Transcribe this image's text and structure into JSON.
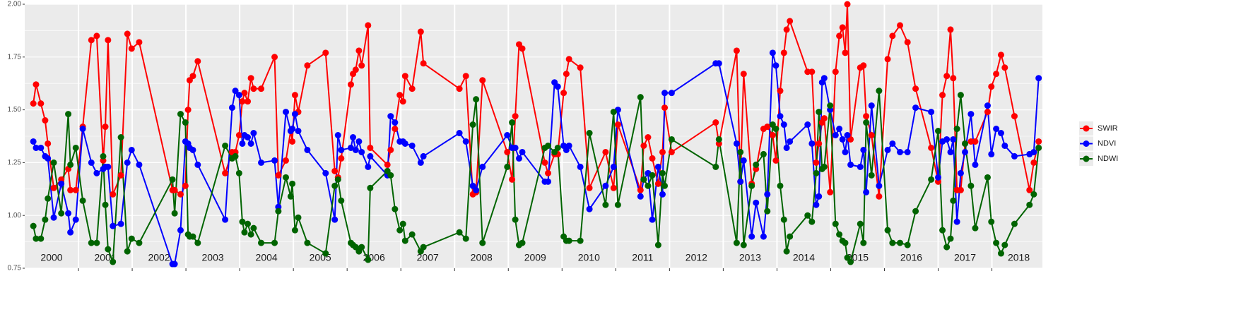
{
  "chart_data": {
    "type": "line",
    "x": [
      2000.16,
      2000.21,
      2000.3,
      2000.38,
      2000.43,
      2000.54,
      2000.68,
      2000.81,
      2000.85,
      2000.95,
      2001.08,
      2001.24,
      2001.34,
      2001.46,
      2001.5,
      2001.55,
      2001.64,
      2001.79,
      2001.91,
      2001.99,
      2002.13,
      2002.75,
      2002.79,
      2002.9,
      2002.99,
      2003.04,
      2003.07,
      2003.13,
      2003.22,
      2003.73,
      2003.86,
      2003.92,
      2003.99,
      2004.05,
      2004.09,
      2004.15,
      2004.21,
      2004.26,
      2004.4,
      2004.65,
      2004.72,
      2004.86,
      2004.95,
      2004.98,
      2005.03,
      2005.09,
      2005.26,
      2005.6,
      2005.77,
      2005.83,
      2005.89,
      2006.07,
      2006.11,
      2006.16,
      2006.22,
      2006.27,
      2006.39,
      2006.43,
      2006.75,
      2006.81,
      2006.89,
      2006.98,
      2007.04,
      2007.08,
      2007.21,
      2007.37,
      2007.42,
      2008.09,
      2008.21,
      2008.34,
      2008.4,
      2008.52,
      2008.98,
      2009.07,
      2009.13,
      2009.2,
      2009.26,
      2009.68,
      2009.74,
      2009.86,
      2009.92,
      2010.03,
      2010.08,
      2010.13,
      2010.34,
      2010.51,
      2010.81,
      2010.96,
      2011.04,
      2011.46,
      2011.52,
      2011.6,
      2011.68,
      2011.79,
      2011.87,
      2011.91,
      2012.04,
      2012.86,
      2012.92,
      2013.25,
      2013.32,
      2013.38,
      2013.53,
      2013.61,
      2013.75,
      2013.82,
      2013.92,
      2013.98,
      2014.06,
      2014.13,
      2014.18,
      2014.24,
      2014.57,
      2014.65,
      2014.73,
      2014.78,
      2014.84,
      2014.88,
      2014.99,
      2015.09,
      2015.16,
      2015.22,
      2015.27,
      2015.31,
      2015.37,
      2015.55,
      2015.61,
      2015.66,
      2015.76,
      2015.9,
      2016.06,
      2016.15,
      2016.29,
      2016.43,
      2016.58,
      2016.87,
      2017.0,
      2017.08,
      2017.16,
      2017.23,
      2017.28,
      2017.35,
      2017.42,
      2017.5,
      2017.61,
      2017.69,
      2017.92,
      2017.99,
      2018.08,
      2018.17,
      2018.24,
      2018.42,
      2018.7,
      2018.78,
      2018.87
    ],
    "series": [
      {
        "name": "SWIR",
        "color": "#ff0000",
        "values": [
          1.53,
          1.62,
          1.53,
          1.45,
          1.34,
          1.13,
          1.17,
          1.22,
          1.12,
          1.12,
          1.42,
          1.83,
          1.85,
          1.26,
          1.42,
          1.83,
          1.1,
          1.19,
          1.86,
          1.79,
          1.82,
          1.12,
          1.12,
          1.1,
          1.14,
          1.5,
          1.64,
          1.66,
          1.73,
          1.2,
          1.3,
          1.3,
          1.38,
          1.54,
          1.58,
          1.54,
          1.65,
          1.6,
          1.6,
          1.75,
          1.19,
          1.26,
          1.4,
          1.35,
          1.57,
          1.49,
          1.71,
          1.77,
          1.21,
          1.18,
          1.27,
          1.62,
          1.67,
          1.69,
          1.78,
          1.71,
          1.9,
          1.32,
          1.24,
          1.31,
          1.41,
          1.57,
          1.54,
          1.66,
          1.6,
          1.87,
          1.72,
          1.6,
          1.66,
          1.1,
          1.11,
          1.64,
          1.3,
          1.17,
          1.47,
          1.81,
          1.79,
          1.25,
          1.2,
          1.29,
          1.29,
          1.58,
          1.67,
          1.74,
          1.7,
          1.13,
          1.3,
          1.13,
          1.43,
          1.12,
          1.33,
          1.37,
          1.27,
          1.15,
          1.3,
          1.51,
          1.3,
          1.44,
          1.34,
          1.78,
          1.16,
          1.67,
          1.15,
          1.22,
          1.41,
          1.42,
          1.38,
          1.26,
          1.59,
          1.77,
          1.88,
          1.92,
          1.68,
          1.68,
          1.25,
          1.34,
          1.44,
          1.46,
          1.11,
          1.68,
          1.85,
          1.89,
          1.77,
          2.0,
          1.36,
          1.7,
          1.71,
          1.47,
          1.38,
          1.09,
          1.74,
          1.85,
          1.9,
          1.82,
          1.6,
          1.32,
          1.16,
          1.57,
          1.66,
          1.88,
          1.65,
          1.12,
          1.12,
          1.34,
          1.35,
          1.35,
          1.49,
          1.61,
          1.67,
          1.76,
          1.7,
          1.47,
          1.12,
          1.25,
          1.35
        ]
      },
      {
        "name": "NDVI",
        "color": "#0000ff",
        "values": [
          1.35,
          1.32,
          1.32,
          1.28,
          1.27,
          0.99,
          1.15,
          1.01,
          0.92,
          0.98,
          1.41,
          1.25,
          1.2,
          1.22,
          1.23,
          1.23,
          0.95,
          0.96,
          1.25,
          1.31,
          1.24,
          0.77,
          0.77,
          0.93,
          1.35,
          1.34,
          1.32,
          1.31,
          1.24,
          0.98,
          1.51,
          1.59,
          1.57,
          1.34,
          1.38,
          1.37,
          1.34,
          1.39,
          1.25,
          1.26,
          1.04,
          1.49,
          1.4,
          1.41,
          1.48,
          1.4,
          1.31,
          1.2,
          0.98,
          1.38,
          1.31,
          1.32,
          1.37,
          1.31,
          1.35,
          1.3,
          1.23,
          1.28,
          1.19,
          1.47,
          1.44,
          1.35,
          1.35,
          1.34,
          1.33,
          1.25,
          1.28,
          1.39,
          1.35,
          1.14,
          1.12,
          1.23,
          1.38,
          1.32,
          1.32,
          1.27,
          1.3,
          1.16,
          1.16,
          1.63,
          1.61,
          1.33,
          1.31,
          1.33,
          1.23,
          1.03,
          1.14,
          1.23,
          1.5,
          1.09,
          1.17,
          1.2,
          0.98,
          1.23,
          1.1,
          1.58,
          1.58,
          1.72,
          1.72,
          1.34,
          1.16,
          1.26,
          0.9,
          1.06,
          0.9,
          1.1,
          1.77,
          1.71,
          1.47,
          1.43,
          1.32,
          1.35,
          1.43,
          1.34,
          1.05,
          1.09,
          1.63,
          1.65,
          1.5,
          1.38,
          1.41,
          1.36,
          1.3,
          1.38,
          1.24,
          1.23,
          1.31,
          1.11,
          1.52,
          1.14,
          1.31,
          1.34,
          1.3,
          1.3,
          1.51,
          1.49,
          1.18,
          1.35,
          1.36,
          1.3,
          1.36,
          0.97,
          1.2,
          1.3,
          1.48,
          1.24,
          1.52,
          1.29,
          1.41,
          1.39,
          1.33,
          1.28,
          1.29,
          1.3,
          1.65
        ]
      },
      {
        "name": "NDWI",
        "color": "#006400",
        "values": [
          0.95,
          0.89,
          0.89,
          0.98,
          1.08,
          1.25,
          1.01,
          1.48,
          1.24,
          1.32,
          1.07,
          0.87,
          0.87,
          1.28,
          1.05,
          0.84,
          0.78,
          1.37,
          0.83,
          0.89,
          0.87,
          1.17,
          1.01,
          1.48,
          1.44,
          0.91,
          0.9,
          0.9,
          0.87,
          1.33,
          1.27,
          1.28,
          1.2,
          0.97,
          0.92,
          0.96,
          0.91,
          0.94,
          0.87,
          0.87,
          1.02,
          1.18,
          1.09,
          1.15,
          0.93,
          0.99,
          0.87,
          0.82,
          1.14,
          1.17,
          1.07,
          0.87,
          0.86,
          0.85,
          0.83,
          0.85,
          0.79,
          1.13,
          1.21,
          1.19,
          1.03,
          0.93,
          0.96,
          0.88,
          0.91,
          0.83,
          0.85,
          0.92,
          0.89,
          1.43,
          1.55,
          0.87,
          1.23,
          1.44,
          0.98,
          0.86,
          0.87,
          1.32,
          1.33,
          1.3,
          1.32,
          0.9,
          0.88,
          0.88,
          0.88,
          1.39,
          1.05,
          1.49,
          1.05,
          1.56,
          1.17,
          1.14,
          1.19,
          0.86,
          1.2,
          1.14,
          1.36,
          1.23,
          1.36,
          0.87,
          1.3,
          0.86,
          1.14,
          1.24,
          1.29,
          1.02,
          1.43,
          1.41,
          1.14,
          0.98,
          0.83,
          0.9,
          1.0,
          0.97,
          1.2,
          1.49,
          1.22,
          1.23,
          1.52,
          0.96,
          0.91,
          0.88,
          0.87,
          0.8,
          0.78,
          0.96,
          0.87,
          1.44,
          1.19,
          1.59,
          0.93,
          0.87,
          0.87,
          0.86,
          1.02,
          1.17,
          1.4,
          0.93,
          0.85,
          0.89,
          1.07,
          1.41,
          1.57,
          1.34,
          1.14,
          0.94,
          1.18,
          0.97,
          0.87,
          0.82,
          0.86,
          0.96,
          1.05,
          1.1,
          1.32
        ]
      }
    ],
    "xlim": [
      2000,
      2018.94
    ],
    "xgrid": [
      2001,
      2002,
      2003,
      2004,
      2005,
      2006,
      2007,
      2008,
      2009,
      2010,
      2011,
      2012,
      2013,
      2014,
      2015,
      2016,
      2017,
      2018
    ],
    "xticks": [
      {
        "value": 2000.5,
        "label": "2000"
      },
      {
        "value": 2001.5,
        "label": "2001"
      },
      {
        "value": 2002.5,
        "label": "2002"
      },
      {
        "value": 2003.5,
        "label": "2003"
      },
      {
        "value": 2004.5,
        "label": "2004"
      },
      {
        "value": 2005.5,
        "label": "2005"
      },
      {
        "value": 2006.5,
        "label": "2006"
      },
      {
        "value": 2007.5,
        "label": "2007"
      },
      {
        "value": 2008.5,
        "label": "2008"
      },
      {
        "value": 2009.5,
        "label": "2009"
      },
      {
        "value": 2010.5,
        "label": "2010"
      },
      {
        "value": 2011.5,
        "label": "2011"
      },
      {
        "value": 2012.5,
        "label": "2012"
      },
      {
        "value": 2013.5,
        "label": "2013"
      },
      {
        "value": 2014.5,
        "label": "2014"
      },
      {
        "value": 2015.5,
        "label": "2015"
      },
      {
        "value": 2016.5,
        "label": "2016"
      },
      {
        "value": 2017.5,
        "label": "2017"
      },
      {
        "value": 2018.5,
        "label": "2018"
      }
    ],
    "ylim": [
      0.75,
      2.0
    ],
    "yticks": [
      0.75,
      {
        "value": 1.0,
        "label": "1.00"
      },
      1.25,
      {
        "value": 1.5,
        "label": "1.50"
      },
      1.75,
      {
        "value": 2.0,
        "label": "2.00"
      }
    ],
    "grid": true,
    "legend": "right"
  }
}
